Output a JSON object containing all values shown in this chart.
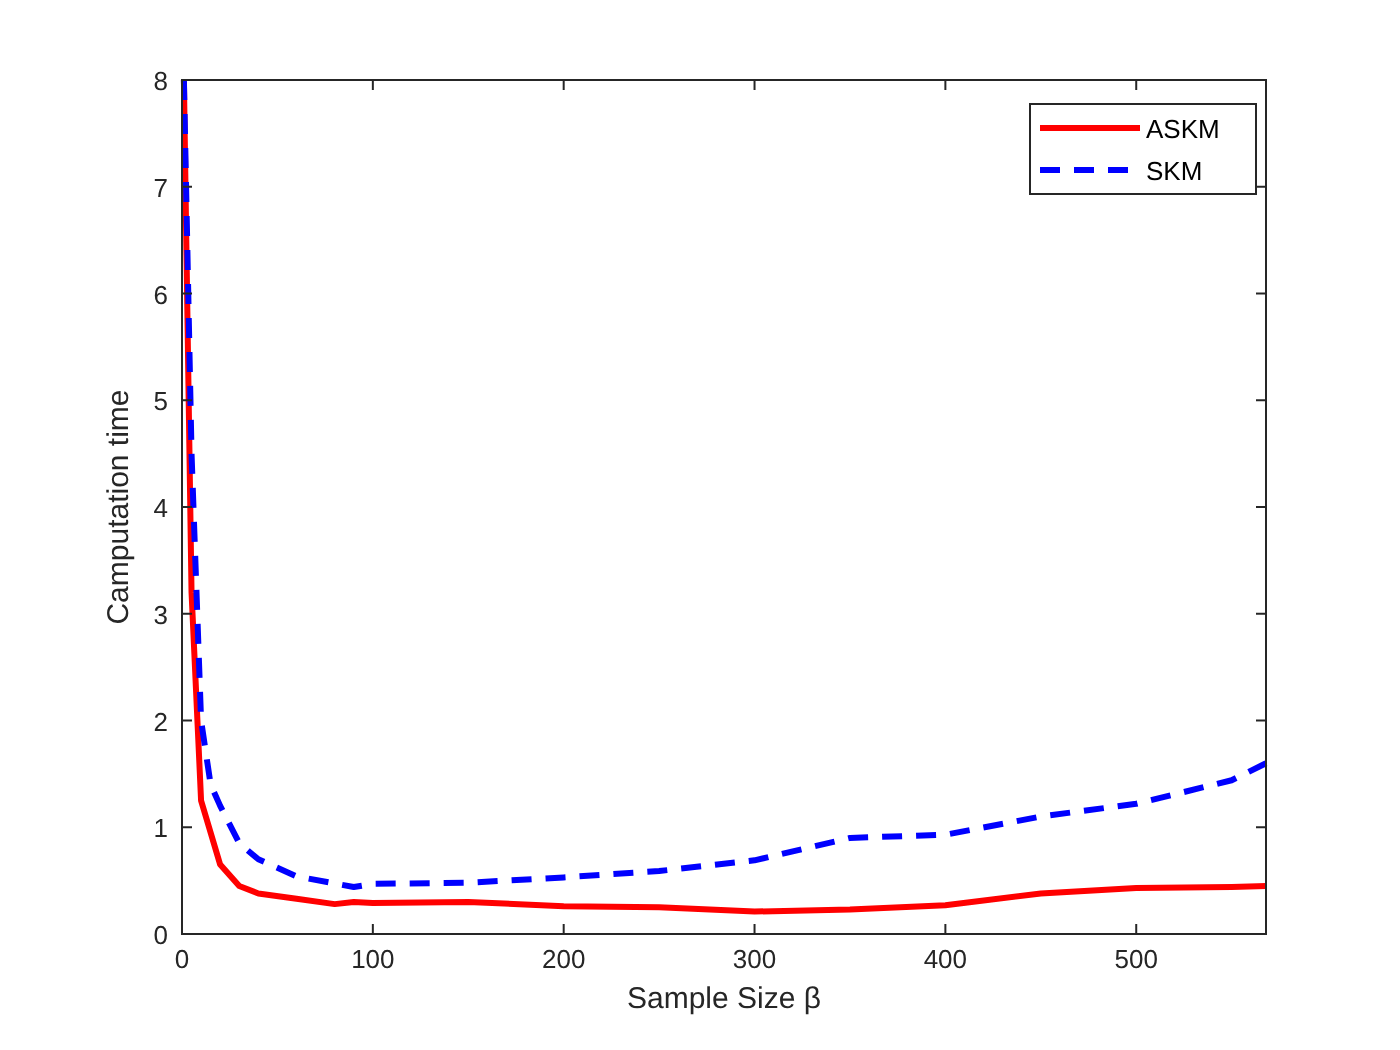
{
  "chart_data": {
    "type": "line",
    "xlabel": "Sample Size β",
    "ylabel": "Camputation time",
    "xlim": [
      0,
      568
    ],
    "xticks": [
      0,
      100,
      200,
      300,
      400,
      500
    ],
    "ylim": [
      0,
      8
    ],
    "yticks": [
      0,
      1,
      2,
      3,
      4,
      5,
      6,
      7,
      8
    ],
    "grid": false,
    "legend": "top right",
    "marker": "none",
    "series": [
      {
        "name": "ASKM",
        "color": "#ff0000",
        "line_style": "solid",
        "x": [
          1,
          5,
          10,
          20,
          30,
          40,
          60,
          80,
          90,
          100,
          150,
          200,
          250,
          300,
          350,
          400,
          450,
          500,
          550,
          568
        ],
        "values": [
          8,
          3.2,
          1.25,
          0.65,
          0.45,
          0.38,
          0.33,
          0.28,
          0.3,
          0.29,
          0.3,
          0.26,
          0.25,
          0.21,
          0.23,
          0.27,
          0.38,
          0.43,
          0.44,
          0.45
        ]
      },
      {
        "name": "SKM",
        "color": "#0000ff",
        "line_style": "dashed",
        "x": [
          1,
          5,
          10,
          15,
          20,
          30,
          40,
          60,
          90,
          100,
          150,
          200,
          250,
          300,
          350,
          400,
          450,
          500,
          550,
          568
        ],
        "values": [
          8,
          4.5,
          2.0,
          1.4,
          1.2,
          0.85,
          0.7,
          0.54,
          0.44,
          0.47,
          0.48,
          0.53,
          0.59,
          0.69,
          0.9,
          0.93,
          1.1,
          1.22,
          1.44,
          1.6
        ]
      }
    ]
  }
}
